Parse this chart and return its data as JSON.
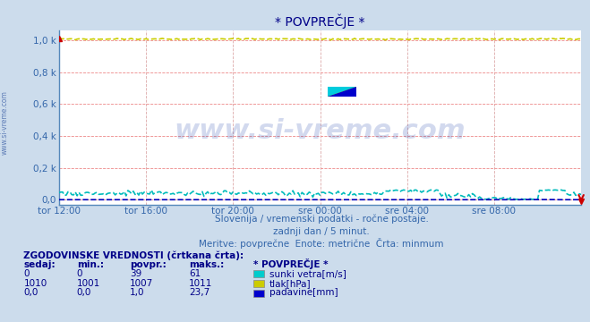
{
  "title": "* POVPREČJE *",
  "bg_color": "#ccdcec",
  "plot_bg_color": "#ffffff",
  "grid_color_h": "#ee8888",
  "grid_color_v": "#ddaaaa",
  "xtick_labels": [
    "tor 12:00",
    "tor 16:00",
    "tor 20:00",
    "sre 00:00",
    "sre 04:00",
    "sre 08:00"
  ],
  "xtick_positions": [
    0,
    48,
    96,
    144,
    192,
    240
  ],
  "ytick_labels": [
    "0,0",
    "0,2 k",
    "0,4 k",
    "0,6 k",
    "0,8 k",
    "1,0 k"
  ],
  "ytick_positions": [
    0,
    200,
    400,
    600,
    800,
    1000
  ],
  "ymin": -30,
  "ymax": 1060,
  "xmin": 0,
  "xmax": 288,
  "subtitle1": "Slovenija / vremenski podatki - ročne postaje.",
  "subtitle2": "zadnji dan / 5 minut.",
  "subtitle3": "Meritve: povprečne  Enote: metrične  Črta: minmum",
  "watermark": "www.si-vreme.com",
  "legend_title": "ZGODOVINSKE VREDNOSTI (črtkana črta):",
  "legend_headers": [
    "sedaj:",
    "min.:",
    "povpr.:",
    "maks.:",
    "* POVPREČJE *"
  ],
  "legend_rows": [
    {
      "sedaj": "0",
      "min": "0",
      "povpr": "39",
      "maks": "61",
      "label": "sunki vetra[m/s]",
      "color": "#00cccc"
    },
    {
      "sedaj": "1010",
      "min": "1001",
      "povpr": "1007",
      "maks": "1011",
      "label": "tlak[hPa]",
      "color": "#cccc00"
    },
    {
      "sedaj": "0,0",
      "min": "0,0",
      "povpr": "1,0",
      "maks": "23,7",
      "label": "padavine[mm]",
      "color": "#0000cc"
    }
  ],
  "line_tlak_color": "#cccc00",
  "line_sunki_color": "#00bbbb",
  "line_padavine_color": "#0000bb",
  "line_width": 1.2,
  "title_color": "#000088",
  "axis_label_color": "#3366aa",
  "subtitle_color": "#3366aa",
  "legend_color": "#000088",
  "red_marker_color": "#cc0000",
  "left_border_color": "#5588bb",
  "bottom_border_color": "#5588bb"
}
